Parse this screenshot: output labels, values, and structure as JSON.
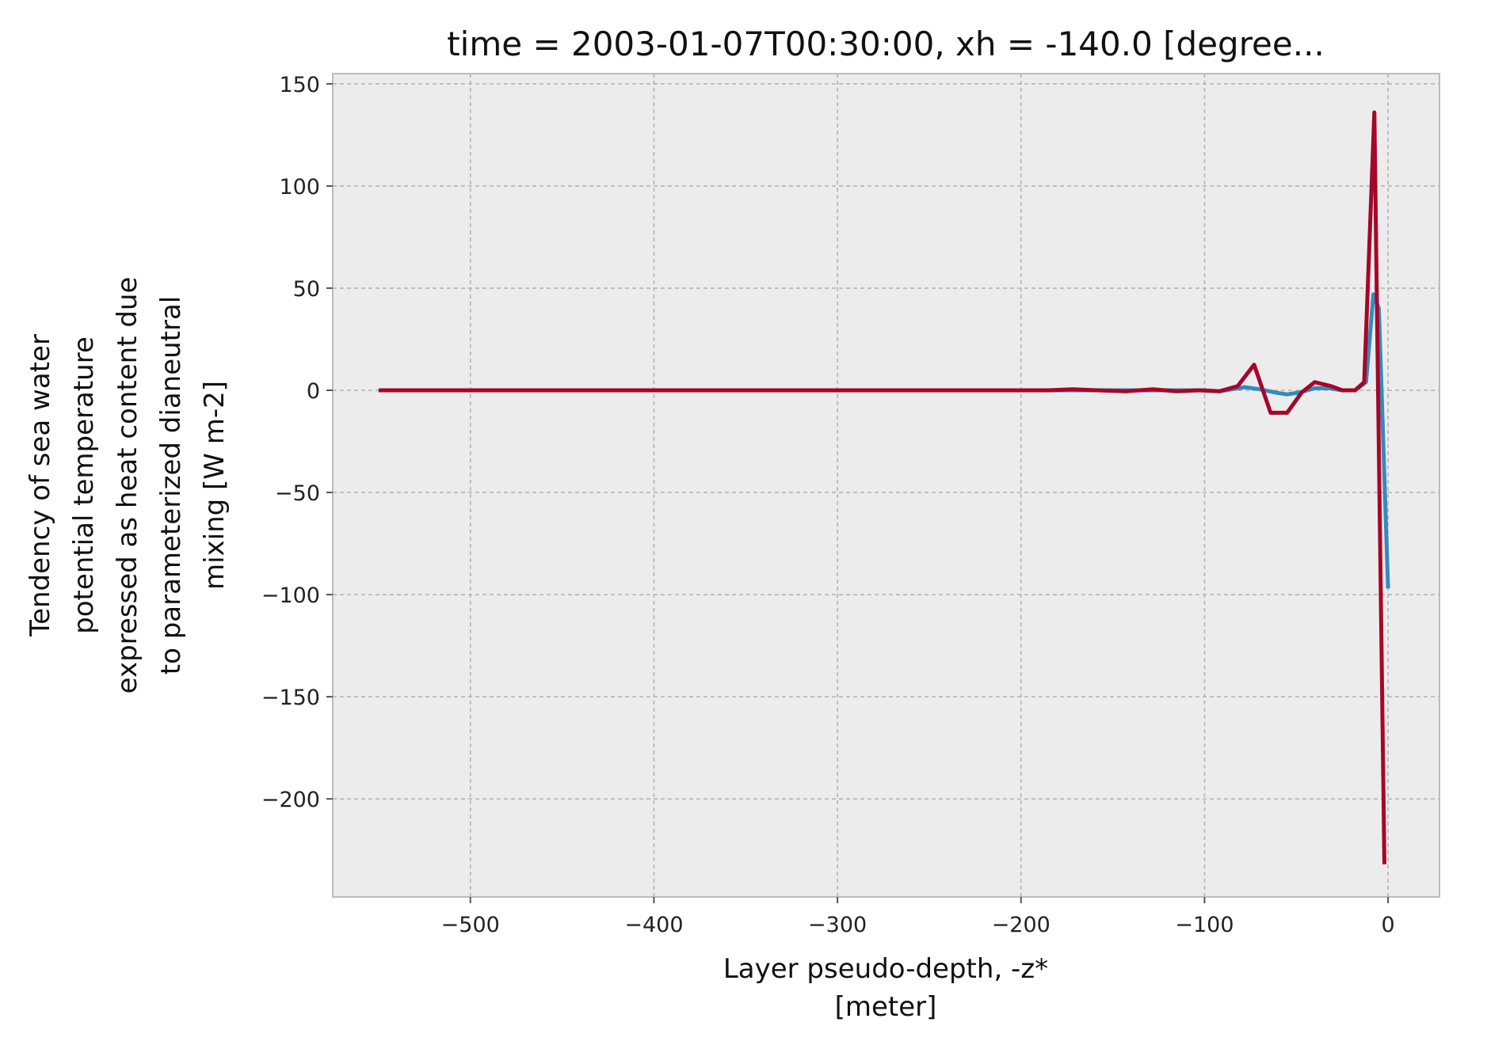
{
  "chart_data": {
    "type": "line",
    "title": "time = 2003-01-07T00:30:00, xh = -140.0 [degree...",
    "xlabel": [
      "Layer pseudo-depth, -z*",
      "[meter]"
    ],
    "ylabel": [
      "Tendency of sea water",
      "potential temperature",
      "expressed as heat content due",
      "to parameterized dianeutral",
      "mixing [W m-2]"
    ],
    "xlim": [
      -575,
      28
    ],
    "ylim": [
      -248,
      155
    ],
    "xticks": [
      -500,
      -400,
      -300,
      -200,
      -100,
      0
    ],
    "xtick_labels": [
      "−500",
      "−400",
      "−300",
      "−200",
      "−100",
      "0"
    ],
    "yticks": [
      150,
      100,
      50,
      0,
      -50,
      -100,
      -150,
      -200
    ],
    "ytick_labels": [
      "150",
      "100",
      "50",
      "0",
      "−50",
      "−100",
      "−150",
      "−200"
    ],
    "grid": true,
    "colors": {
      "background": "#ececec",
      "grid": "#b0b0b0",
      "frame": "#bcbcbc"
    },
    "series": [
      {
        "color": "#348abd",
        "x": [
          -550,
          -500,
          -450,
          -400,
          -350,
          -300,
          -250,
          -200,
          -180,
          -170,
          -160,
          -150,
          -140,
          -130,
          -120,
          -110,
          -100,
          -92,
          -85,
          -78,
          -70,
          -62,
          -55,
          -48,
          -40,
          -32,
          -25,
          -18,
          -12,
          -8,
          -5,
          0
        ],
        "y": [
          0,
          0,
          0,
          0,
          0,
          0,
          0,
          0,
          0,
          0,
          0,
          0,
          0,
          0,
          0,
          0,
          0,
          -0.5,
          0.5,
          1.5,
          0.5,
          -1,
          -2,
          -1,
          1,
          1,
          0,
          0,
          4,
          47,
          40,
          -97
        ]
      },
      {
        "color": "#a60628",
        "x": [
          -550,
          -500,
          -450,
          -400,
          -350,
          -300,
          -250,
          -200,
          -185,
          -172,
          -158,
          -143,
          -128,
          -115,
          -103,
          -92,
          -82,
          -73,
          -64,
          -55,
          -47,
          -40,
          -31,
          -25,
          -18,
          -13,
          -7.5,
          -2
        ],
        "y": [
          0,
          0,
          0,
          0,
          0,
          0,
          0,
          0,
          0,
          0.5,
          0,
          -0.5,
          0.5,
          -0.5,
          0,
          -0.5,
          2,
          12.5,
          -11,
          -11,
          -1,
          4,
          2,
          0,
          0,
          4,
          136,
          -232
        ]
      }
    ]
  }
}
